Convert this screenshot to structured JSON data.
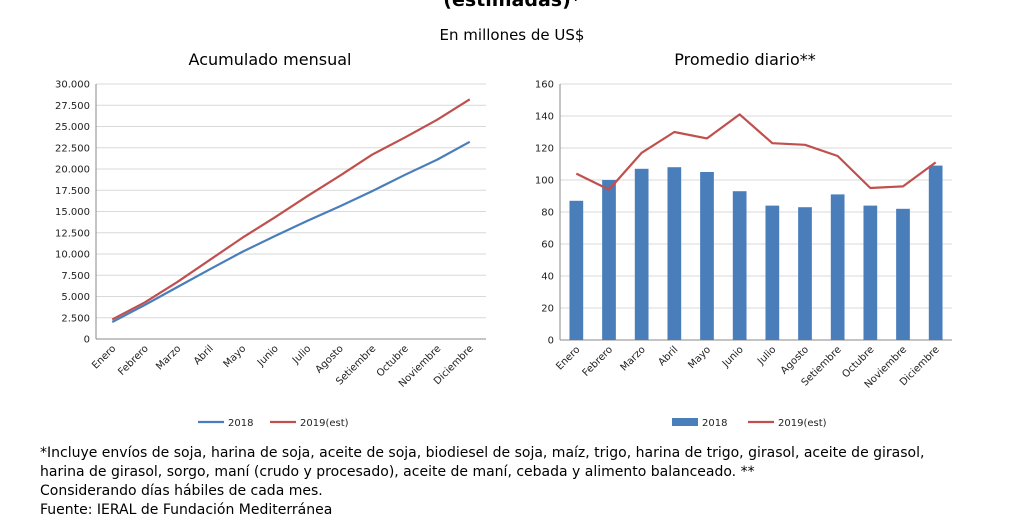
{
  "header": {
    "title": "(estimadas)*",
    "units": "En millones de US$"
  },
  "colors": {
    "s2018": "#4a7ebb",
    "s2019": "#c0504d",
    "bar2018": "#4a7ebb"
  },
  "chart_data": [
    {
      "type": "line",
      "title": "Acumulado mensual",
      "categories": [
        "Enero",
        "Febrero",
        "Marzo",
        "Abril",
        "Mayo",
        "Junio",
        "Julio",
        "Agosto",
        "Setiembre",
        "Octubre",
        "Noviembre",
        "Diciembre"
      ],
      "ylim": [
        0,
        30000
      ],
      "yticks": [
        "0",
        "2.500",
        "5.000",
        "7.500",
        "10.000",
        "12.500",
        "15.000",
        "17.500",
        "20.000",
        "22.500",
        "25.000",
        "27.500",
        "30.000"
      ],
      "series": [
        {
          "name": "2018",
          "values": [
            2000,
            4000,
            6100,
            8200,
            10250,
            12100,
            13900,
            15600,
            17400,
            19300,
            21100,
            23200
          ]
        },
        {
          "name": "2019(est)",
          "values": [
            2300,
            4300,
            6700,
            9300,
            11900,
            14300,
            16800,
            19200,
            21700,
            23700,
            25800,
            28200
          ]
        }
      ],
      "legend_position": "bottom"
    },
    {
      "type": "bar",
      "title": "Promedio diario**",
      "categories": [
        "Enero",
        "Febrero",
        "Marzo",
        "Abril",
        "Mayo",
        "Junio",
        "Julio",
        "Agosto",
        "Setiembre",
        "Octubre",
        "Noviembre",
        "Diciembre"
      ],
      "ylim": [
        0,
        160
      ],
      "yticks": [
        "0",
        "20",
        "40",
        "60",
        "80",
        "100",
        "120",
        "140",
        "160"
      ],
      "series": [
        {
          "name": "2018",
          "values": [
            87,
            100,
            107,
            108,
            105,
            93,
            84,
            83,
            91,
            84,
            82,
            109
          ]
        },
        {
          "name": "2019(est)",
          "values": [
            104,
            94,
            117,
            130,
            126,
            141,
            123,
            122,
            115,
            95,
            96,
            111
          ]
        }
      ],
      "legend_position": "bottom"
    }
  ],
  "footnote": {
    "line1": "*Incluye envíos de soja, harina de soja, aceite de soja, biodiesel de soja, maíz, trigo, harina de trigo, girasol, aceite de girasol, harina de girasol, sorgo, maní (crudo y procesado), aceite de maní, cebada y alimento balanceado. **",
    "line2": "Considerando días hábiles de cada mes.",
    "source": "Fuente: IERAL de Fundación Mediterránea"
  }
}
